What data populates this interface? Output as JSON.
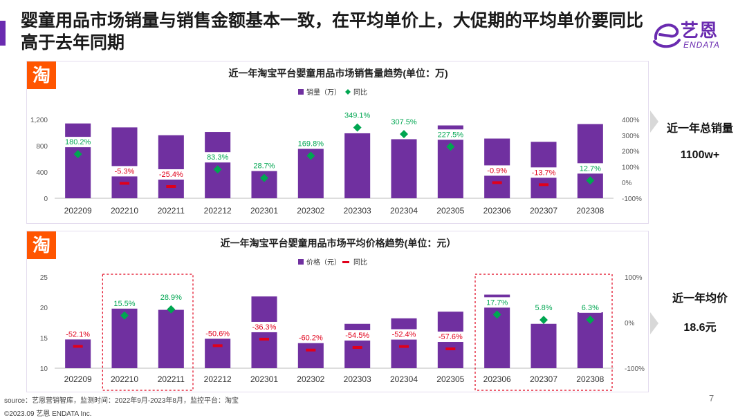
{
  "header": {
    "title": "婴童用品市场销量与销售金额基本一致，在平均单价上，大促期的平均单价要同比高于去年同期",
    "brand_cn": "艺恩",
    "brand_en": "ENDATA"
  },
  "colors": {
    "bar": "#7030a0",
    "bar_light": "#9b6fc4",
    "diamond": "#00a651",
    "positive_label": "#00a651",
    "negative_label": "#e0001b",
    "dash": "#e0001b",
    "highlight_box": "#e0001b",
    "accent": "#6a2bb0"
  },
  "side": {
    "top_label": "近一年总销量",
    "top_value": "1100w+",
    "bottom_label": "近一年均价",
    "bottom_value": "18.6元"
  },
  "footer": {
    "source": "source：艺恩营销智库，监测时间：2022年9月-2023年8月，监控平台：淘宝",
    "copyright": "©2023.09  艺恩 ENDATA Inc.",
    "page": "7"
  },
  "chart_data": [
    {
      "type": "bar",
      "logo": "淘",
      "title": "近一年淘宝平台婴童用品市场销售量趋势(单位：万)",
      "legend": [
        "销量（万）",
        "同比"
      ],
      "legend_position": "top-center",
      "categories": [
        "202209",
        "202210",
        "202211",
        "202212",
        "202301",
        "202302",
        "202303",
        "202304",
        "202305",
        "202306",
        "202307",
        "202308"
      ],
      "series": [
        {
          "name": "销量（万）",
          "values": [
            1140,
            1080,
            960,
            1010,
            430,
            780,
            990,
            900,
            1110,
            910,
            860,
            1130
          ]
        },
        {
          "name": "同比",
          "axis": "right",
          "values": [
            180.2,
            -5.3,
            -25.4,
            83.3,
            28.7,
            169.8,
            349.1,
            307.5,
            227.5,
            -0.9,
            -13.7,
            12.7
          ]
        }
      ],
      "data_labels": [
        "180.2%",
        "-5.3%",
        "-25.4%",
        "83.3%",
        "28.7%",
        "169.8%",
        "349.1%",
        "307.5%",
        "227.5%",
        "-0.9%",
        "-13.7%",
        "12.7%"
      ],
      "ylim": [
        0,
        1200
      ],
      "y_ticks": [
        "0",
        "400",
        "800",
        "1,200"
      ],
      "y_tick_values": [
        0,
        400,
        800,
        1200
      ],
      "y2lim": [
        -100,
        400
      ],
      "y2_ticks": [
        "-100%",
        "0%",
        "100%",
        "200%",
        "300%",
        "400%"
      ],
      "y2_tick_values": [
        -100,
        0,
        100,
        200,
        300,
        400
      ],
      "highlight_groups": []
    },
    {
      "type": "bar",
      "logo": "淘",
      "title": "近一年淘宝平台婴童用品市场平均价格趋势(单位：元）",
      "legend": [
        "价格（元）",
        "同比"
      ],
      "legend_position": "top-center",
      "categories": [
        "202209",
        "202210",
        "202211",
        "202212",
        "202301",
        "202302",
        "202303",
        "202304",
        "202305",
        "202306",
        "202307",
        "202308"
      ],
      "series": [
        {
          "name": "价格（元）",
          "values": [
            14.9,
            19.9,
            19.6,
            15.0,
            21.8,
            14.2,
            17.3,
            18.2,
            19.3,
            22.1,
            17.3,
            19.2
          ]
        },
        {
          "name": "同比",
          "axis": "right",
          "values": [
            -52.1,
            15.5,
            28.9,
            -50.6,
            -36.3,
            -60.2,
            -54.5,
            -52.4,
            -57.6,
            17.7,
            5.8,
            6.3
          ]
        }
      ],
      "data_labels": [
        "-52.1%",
        "15.5%",
        "28.9%",
        "-50.6%",
        "-36.3%",
        "-60.2%",
        "-54.5%",
        "-52.4%",
        "-57.6%",
        "17.7%",
        "5.8%",
        "6.3%"
      ],
      "ylim": [
        10,
        25
      ],
      "y_ticks": [
        "10",
        "15",
        "20",
        "25"
      ],
      "y_tick_values": [
        10,
        15,
        20,
        25
      ],
      "y2lim": [
        -100,
        100
      ],
      "y2_ticks": [
        "-100%",
        "0%",
        "100%"
      ],
      "y2_tick_values": [
        -100,
        0,
        100
      ],
      "highlight_groups": [
        [
          1,
          2
        ],
        [
          9,
          11
        ]
      ]
    }
  ]
}
